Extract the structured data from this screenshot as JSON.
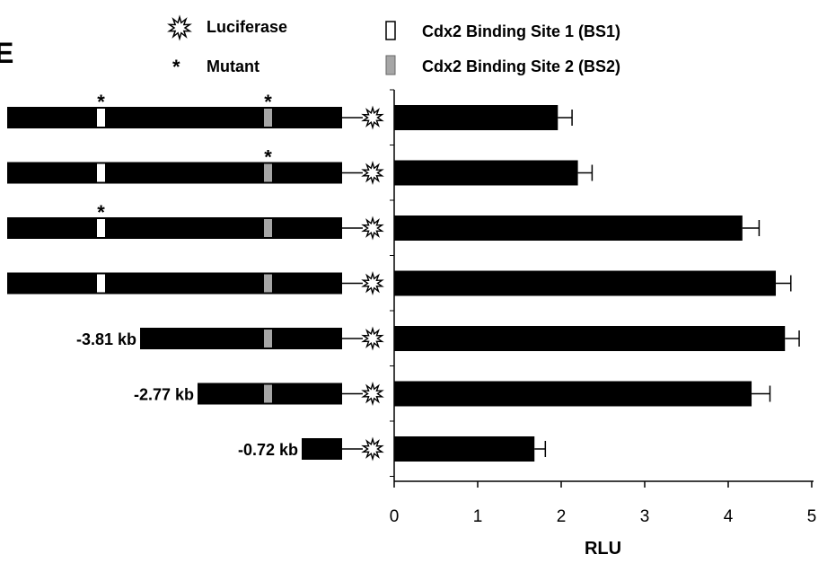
{
  "panel_label": "E",
  "legend": {
    "luciferase": "Luciferase",
    "mutant_symbol": "*",
    "mutant": "Mutant",
    "bs1": "Cdx2 Binding Site 1 (BS1)",
    "bs2": "Cdx2 Binding Site 2 (BS2)"
  },
  "constructs": [
    {
      "label": "",
      "bs1": true,
      "bs2": true,
      "bs1_mutant": true,
      "bs2_mutant": true
    },
    {
      "label": "",
      "bs1": true,
      "bs2": true,
      "bs1_mutant": false,
      "bs2_mutant": true
    },
    {
      "label": "",
      "bs1": true,
      "bs2": true,
      "bs1_mutant": true,
      "bs2_mutant": false
    },
    {
      "label": "",
      "bs1": true,
      "bs2": true,
      "bs1_mutant": false,
      "bs2_mutant": false
    },
    {
      "label": "-3.81 kb",
      "bs1": false,
      "bs2": true,
      "bs1_mutant": false,
      "bs2_mutant": false
    },
    {
      "label": "-2.77 kb",
      "bs1": false,
      "bs2": true,
      "bs1_mutant": false,
      "bs2_mutant": false
    },
    {
      "label": "-0.72 kb",
      "bs1": false,
      "bs2": false,
      "bs1_mutant": false,
      "bs2_mutant": false
    }
  ],
  "chart_data": {
    "type": "bar",
    "orientation": "horizontal",
    "values": [
      1.96,
      2.2,
      4.17,
      4.57,
      4.68,
      4.28,
      1.68
    ],
    "errors": [
      0.17,
      0.17,
      0.2,
      0.18,
      0.17,
      0.22,
      0.13
    ],
    "xlabel": "RLU",
    "xlim": [
      0,
      5
    ],
    "xticks": [
      "0",
      "1",
      "2",
      "3",
      "4",
      "5"
    ],
    "bar_color": "#000000",
    "grid": false
  },
  "colors": {
    "bar": "#000000",
    "bs1_fill": "#ffffff",
    "bs2_fill": "#a6a6a6"
  }
}
